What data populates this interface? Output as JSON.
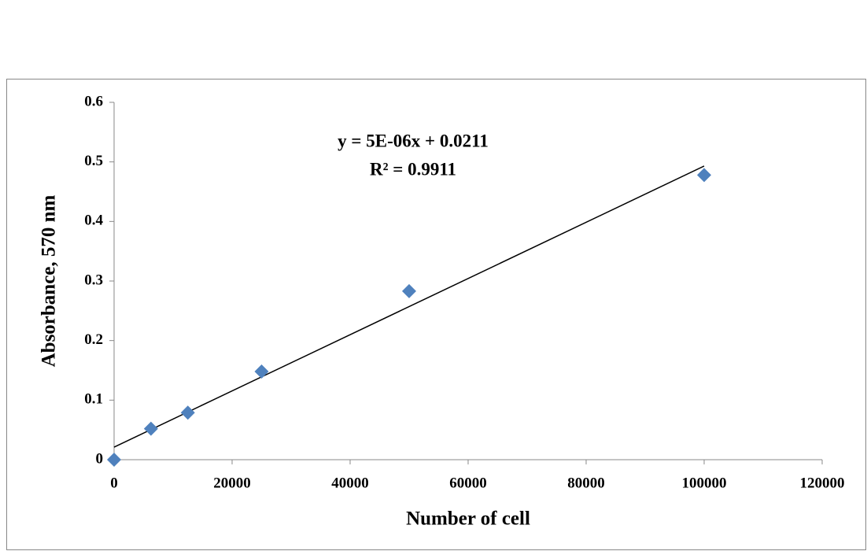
{
  "chart_data": {
    "type": "scatter",
    "x_label": "Number of cell",
    "y_label": "Absorbance, 570 nm",
    "annotations": [
      "y = 5E-06x + 0.0211",
      "R² = 0.9911"
    ],
    "series": [
      {
        "color": "#4f81bd",
        "x": [
          0,
          6250,
          12500,
          25000,
          50000,
          100000
        ],
        "values": [
          0,
          0.052,
          0.079,
          0.148,
          0.283,
          0.478
        ]
      }
    ],
    "trendline": {
      "color": "#000000",
      "x": [
        0,
        100000
      ],
      "y": [
        0.0211,
        0.493
      ]
    },
    "xlim": [
      0,
      120000
    ],
    "xticks": [
      0,
      20000,
      40000,
      60000,
      80000,
      100000,
      120000
    ],
    "ylim": [
      0,
      0.6
    ],
    "yticks": [
      0,
      0.1,
      0.2,
      0.3,
      0.4,
      0.5,
      0.6
    ],
    "grid": false
  }
}
